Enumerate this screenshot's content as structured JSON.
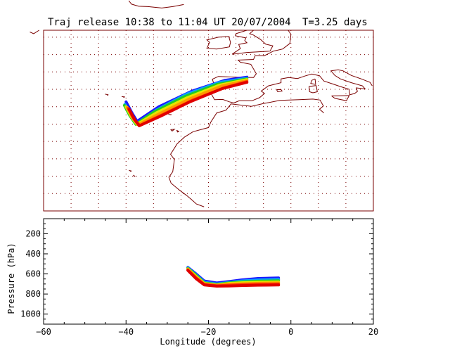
{
  "colors": {
    "frame": "#7a0000",
    "coast": "#7a0000",
    "grid": "#7a0000",
    "ensemble": [
      "#1a1aff",
      "#0aa0ff",
      "#22cc22",
      "#e6e600",
      "#ff9900",
      "#ff3300",
      "#e00000"
    ]
  },
  "chart_data": [
    {
      "type": "line",
      "panel": "map",
      "title": "Traj release 10:38 to 11:04 UT 20/07/2004",
      "duration_label": "T=3.25 days",
      "xlim": [
        -40,
        20
      ],
      "ylim": [
        5,
        57
      ],
      "grid": true,
      "grid_lon": [
        -35,
        -30,
        -25,
        -20,
        -15,
        -10,
        -5,
        0,
        5,
        10,
        15
      ],
      "grid_lat": [
        10,
        15,
        20,
        25,
        30,
        35,
        40,
        45,
        50,
        55
      ],
      "series": [
        {
          "x": [
            -3,
            -7,
            -13,
            -19,
            -23,
            -24,
            -25
          ],
          "y": [
            43.5,
            42.6,
            39.5,
            35.0,
            30.8,
            33.4,
            36.4
          ]
        },
        {
          "x": [
            -3,
            -8,
            -14,
            -19.5,
            -23,
            -24.2,
            -25.2
          ],
          "y": [
            43.2,
            42.0,
            38.6,
            34.0,
            30.2,
            32.8,
            35.7
          ]
        },
        {
          "x": [
            -3,
            -8.5,
            -14.5,
            -20,
            -23.2,
            -24.3,
            -25.3
          ],
          "y": [
            43.0,
            41.4,
            37.8,
            33.4,
            29.9,
            32.4,
            35.4
          ]
        },
        {
          "x": [
            -3,
            -8,
            -14,
            -19.5,
            -23,
            -24,
            -25
          ],
          "y": [
            42.8,
            41.2,
            37.5,
            33.2,
            29.9,
            32.0,
            35.0
          ]
        },
        {
          "x": [
            -3,
            -7.5,
            -13.5,
            -19,
            -22.8,
            -23.8,
            -24.8
          ],
          "y": [
            42.5,
            41.0,
            37.2,
            32.9,
            29.8,
            31.8,
            34.8
          ]
        },
        {
          "x": [
            -3,
            -7,
            -13,
            -18.5,
            -22.5,
            -23.6,
            -24.6
          ],
          "y": [
            42.2,
            40.5,
            36.8,
            32.6,
            29.6,
            31.5,
            34.5
          ]
        },
        {
          "x": [
            -3,
            -7.5,
            -13.5,
            -18.8,
            -22.6,
            -23.4,
            -24.4
          ],
          "y": [
            42.0,
            40.2,
            36.3,
            32.2,
            29.5,
            31.2,
            34.2
          ]
        }
      ]
    },
    {
      "type": "line",
      "panel": "pressure",
      "xlabel": "Longitude  (degrees)",
      "ylabel": "Pressure  (hPa)",
      "xlim": [
        -60,
        20
      ],
      "ylim": [
        1100,
        50
      ],
      "x_ticks": [
        -60,
        -40,
        -20,
        0,
        20
      ],
      "y_ticks": [
        200,
        400,
        600,
        800,
        1000
      ],
      "series": [
        {
          "x": [
            -3,
            -8,
            -12,
            -15,
            -18,
            -21,
            -23,
            -25
          ],
          "y": [
            640,
            645,
            660,
            675,
            690,
            670,
            600,
            535
          ]
        },
        {
          "x": [
            -3,
            -8,
            -12,
            -15,
            -18,
            -21,
            -23,
            -25
          ],
          "y": [
            655,
            660,
            670,
            685,
            700,
            682,
            610,
            540
          ]
        },
        {
          "x": [
            -3,
            -8,
            -12,
            -15,
            -18,
            -21,
            -23,
            -25
          ],
          "y": [
            668,
            672,
            680,
            690,
            705,
            690,
            615,
            545
          ]
        },
        {
          "x": [
            -3,
            -8,
            -12,
            -15,
            -18,
            -21,
            -23,
            -25
          ],
          "y": [
            680,
            683,
            688,
            695,
            710,
            695,
            625,
            550
          ]
        },
        {
          "x": [
            -3,
            -8,
            -12,
            -15,
            -18,
            -21,
            -23,
            -25
          ],
          "y": [
            690,
            693,
            698,
            702,
            712,
            700,
            632,
            555
          ]
        },
        {
          "x": [
            -3,
            -8,
            -12,
            -15,
            -18,
            -21,
            -23,
            -25
          ],
          "y": [
            700,
            703,
            708,
            712,
            718,
            705,
            640,
            560
          ]
        },
        {
          "x": [
            -3,
            -8,
            -12,
            -15,
            -18,
            -21,
            -23,
            -25
          ],
          "y": [
            710,
            712,
            716,
            720,
            722,
            710,
            648,
            565
          ]
        }
      ]
    }
  ]
}
